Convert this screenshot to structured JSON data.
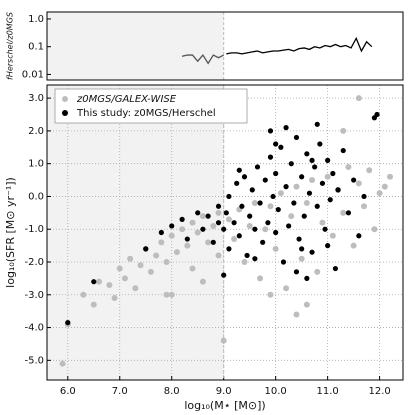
{
  "chart_data": [
    {
      "type": "line",
      "ylabel": "fHerschel/z0MGS",
      "yscale": "log",
      "xlim": [
        5.6,
        12.45
      ],
      "ylim": [
        0.0063,
        1.78
      ],
      "yticks": [
        {
          "value": 1,
          "label": "1.0"
        },
        0.1,
        0.01
      ],
      "highlight_xmax": 9.0,
      "series": [
        {
          "color": "#555555",
          "x": [
            8.2,
            8.3,
            8.4,
            8.5,
            8.6,
            8.7,
            8.8,
            8.9,
            9.0
          ],
          "values": [
            0.045,
            0.05,
            0.05,
            0.03,
            0.05,
            0.025,
            0.05,
            0.04,
            0.05
          ]
        },
        {
          "color": "#000000",
          "x": [
            9.05,
            9.15,
            9.25,
            9.35,
            9.45,
            9.55,
            9.65,
            9.75,
            9.85,
            9.95,
            10.05,
            10.15,
            10.25,
            10.35,
            10.45,
            10.55,
            10.65,
            10.75,
            10.85,
            10.95,
            11.05,
            11.15,
            11.25,
            11.35,
            11.45,
            11.55,
            11.65,
            11.75,
            11.85
          ],
          "values": [
            0.055,
            0.06,
            0.06,
            0.055,
            0.06,
            0.065,
            0.07,
            0.06,
            0.065,
            0.07,
            0.07,
            0.075,
            0.08,
            0.07,
            0.085,
            0.09,
            0.08,
            0.1,
            0.09,
            0.11,
            0.1,
            0.12,
            0.1,
            0.11,
            0.09,
            0.2,
            0.07,
            0.15,
            0.1
          ]
        }
      ]
    },
    {
      "type": "scatter",
      "xlabel": "log₁₀(M⋆ [M⊙])",
      "ylabel": "log₁₀(SFR [M⊙ yr⁻¹])",
      "xlim": [
        5.6,
        12.45
      ],
      "ylim": [
        -5.6,
        3.4
      ],
      "grid": true,
      "legend": "upper left",
      "highlight_xmax": 9.0,
      "xticks": [
        {
          "value": 6,
          "label": "6.0"
        },
        {
          "value": 7,
          "label": "7.0"
        },
        {
          "value": 8,
          "label": "8.0"
        },
        {
          "value": 9,
          "label": "9.0"
        },
        {
          "value": 10,
          "label": "10.0"
        },
        {
          "value": 11,
          "label": "11.0"
        },
        {
          "value": 12,
          "label": "12.0"
        }
      ],
      "yticks": [
        {
          "value": 3,
          "label": "3.0"
        },
        {
          "value": 2,
          "label": "2.0"
        },
        {
          "value": 1,
          "label": "1.0"
        },
        {
          "value": 0,
          "label": "0.0"
        },
        {
          "value": -1,
          "label": "-1.0"
        },
        {
          "value": -2,
          "label": "-2.0"
        },
        {
          "value": -3,
          "label": "-3.0"
        },
        {
          "value": -4,
          "label": "-4.0"
        },
        {
          "value": -5,
          "label": "-5.0"
        }
      ],
      "series": [
        {
          "name": "z0MGS/GALEX-WISE",
          "color": "#bdbdbd",
          "x": [
            5.9,
            6.0,
            6.3,
            6.5,
            6.6,
            6.8,
            6.9,
            7.0,
            7.1,
            7.2,
            7.3,
            7.4,
            7.5,
            7.6,
            7.7,
            7.8,
            7.9,
            8.0,
            8.0,
            8.1,
            8.2,
            8.3,
            8.4,
            8.4,
            8.5,
            8.6,
            8.7,
            8.8,
            8.9,
            8.9,
            9.0,
            9.1,
            9.2,
            9.3,
            9.4,
            9.5,
            9.6,
            9.7,
            9.8,
            9.9,
            10.0,
            10.1,
            10.2,
            10.3,
            10.4,
            10.5,
            10.6,
            10.7,
            10.8,
            10.9,
            11.0,
            11.1,
            11.2,
            11.3,
            11.4,
            11.5,
            11.6,
            11.7,
            11.8,
            11.9,
            12.0,
            12.1,
            11.3,
            11.6,
            10.6,
            9.9,
            10.4,
            8.6,
            7.9,
            12.2
          ],
          "values": [
            -5.1,
            -3.9,
            -3.0,
            -3.3,
            -2.6,
            -2.7,
            -3.1,
            -2.2,
            -2.5,
            -1.9,
            -2.8,
            -2.1,
            -1.6,
            -2.3,
            -1.8,
            -1.4,
            -2.0,
            -1.2,
            -3.0,
            -1.7,
            -1.0,
            -1.5,
            -0.8,
            -2.2,
            -1.1,
            -0.6,
            -1.4,
            -0.9,
            -0.5,
            -1.8,
            -4.4,
            -0.7,
            -1.3,
            -0.4,
            -2.0,
            -0.9,
            -0.2,
            -2.5,
            -1.0,
            -0.3,
            -1.6,
            0.1,
            -2.8,
            -0.6,
            0.3,
            -1.9,
            -0.2,
            0.5,
            -2.3,
            -0.8,
            0.6,
            -1.2,
            0.2,
            -0.5,
            0.9,
            -1.5,
            0.4,
            -0.3,
            0.8,
            -1.0,
            0.1,
            0.3,
            2.0,
            3.0,
            -3.3,
            -3.0,
            -3.6,
            -2.6,
            -3.0,
            0.6
          ]
        },
        {
          "name": "This study: z0MGS/Herschel",
          "color": "#000000",
          "x": [
            6.0,
            6.5,
            7.5,
            7.8,
            8.0,
            8.2,
            8.3,
            8.5,
            8.6,
            8.7,
            8.8,
            8.9,
            8.9,
            9.0,
            9.05,
            9.1,
            9.1,
            9.2,
            9.25,
            9.3,
            9.35,
            9.4,
            9.45,
            9.5,
            9.55,
            9.6,
            9.65,
            9.7,
            9.75,
            9.8,
            9.85,
            9.9,
            9.95,
            10.0,
            10.0,
            10.05,
            10.1,
            10.15,
            10.2,
            10.25,
            10.3,
            10.35,
            10.4,
            10.45,
            10.5,
            10.55,
            10.6,
            10.65,
            10.7,
            10.75,
            10.8,
            10.85,
            10.9,
            10.95,
            11.0,
            11.05,
            11.1,
            11.15,
            11.2,
            11.3,
            11.4,
            11.5,
            11.6,
            11.7,
            11.9,
            11.95,
            10.6,
            10.2,
            9.9,
            10.8,
            10.5,
            9.6,
            9.3,
            10.0,
            10.7,
            9.0,
            10.4,
            11.0
          ],
          "values": [
            -3.85,
            -2.6,
            -1.6,
            -1.1,
            -0.9,
            -0.7,
            -1.3,
            -0.5,
            -1.0,
            -0.6,
            -1.4,
            -0.8,
            -0.3,
            -1.0,
            -0.5,
            0.0,
            -1.6,
            -0.8,
            0.4,
            -1.2,
            -0.3,
            0.6,
            -1.8,
            -0.6,
            0.2,
            -1.0,
            0.9,
            -0.2,
            -1.4,
            0.5,
            -0.8,
            1.2,
            0.0,
            -1.1,
            0.7,
            -0.4,
            1.5,
            -2.0,
            0.3,
            -0.9,
            1.0,
            -0.2,
            1.8,
            -1.3,
            0.6,
            -0.6,
            1.3,
            0.1,
            -1.7,
            0.9,
            -0.3,
            1.6,
            0.4,
            -1.0,
            1.1,
            -0.1,
            0.7,
            -2.2,
            0.2,
            1.4,
            -0.5,
            0.5,
            -1.2,
            0.0,
            2.4,
            2.5,
            -2.5,
            2.1,
            2.0,
            2.2,
            -1.6,
            -1.9,
            0.8,
            1.6,
            1.1,
            -2.4,
            -2.3,
            -1.5
          ]
        }
      ]
    }
  ]
}
